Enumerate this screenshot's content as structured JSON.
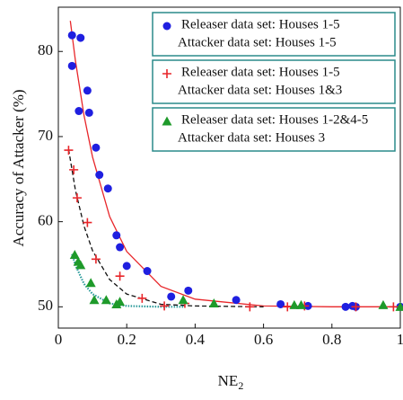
{
  "chart_data": {
    "type": "scatter",
    "x_label": "NE",
    "x_label_subscript": "2",
    "y_label": "Accuracy of Attacker (%)",
    "xlim": [
      0,
      1
    ],
    "ylim": [
      47.5,
      85.2
    ],
    "xticks": [
      0,
      0.2,
      0.4,
      0.6,
      0.8,
      1
    ],
    "yticks": [
      50,
      60,
      70,
      80
    ],
    "grid": false,
    "legend_position": "upper right",
    "series": [
      {
        "name": [
          "Releaser data set: Houses 1-5",
          "Attacker data set: Houses 1-5"
        ],
        "color": "#1f1fe0",
        "marker": "circle",
        "x": [
          0.04,
          0.065,
          0.04,
          0.085,
          0.06,
          0.09,
          0.11,
          0.12,
          0.145,
          0.17,
          0.18,
          0.2,
          0.26,
          0.33,
          0.38,
          0.52,
          0.65,
          0.73,
          0.84,
          0.86,
          0.87,
          1
        ],
        "values": [
          81.9,
          81.6,
          78.3,
          75.4,
          73,
          72.8,
          68.7,
          65.5,
          63.9,
          58.4,
          57,
          54.8,
          54.2,
          51.2,
          51.9,
          50.8,
          50.3,
          50.1,
          50,
          50.1,
          50,
          50
        ]
      },
      {
        "name": [
          "Releaser data set: Houses 1-5",
          "Attacker data set: Houses 1&3"
        ],
        "color": "#e8262a",
        "marker": "plus",
        "x": [
          0.03,
          0.045,
          0.055,
          0.085,
          0.11,
          0.18,
          0.245,
          0.31,
          0.37,
          0.56,
          0.67,
          0.72,
          0.87,
          0.98
        ],
        "values": [
          68.4,
          66.1,
          62.8,
          59.9,
          55.6,
          53.6,
          51,
          50.1,
          50.4,
          50,
          50,
          50.1,
          50,
          50
        ]
      },
      {
        "name": [
          "Releaser data set: Houses 1-2&4-5",
          "Attacker data set: Houses 3"
        ],
        "color": "#1e9a2a",
        "marker": "triangle",
        "x": [
          0.048,
          0.058,
          0.065,
          0.095,
          0.105,
          0.14,
          0.17,
          0.18,
          0.365,
          0.455,
          0.69,
          0.71,
          0.95,
          1
        ],
        "values": [
          56.1,
          55.3,
          54.9,
          52.8,
          50.8,
          50.8,
          50.3,
          50.6,
          50.8,
          50.4,
          50.2,
          50.2,
          50.2,
          50
        ]
      }
    ],
    "fits": [
      {
        "color": "#e8262a",
        "dash": "none",
        "x": [
          0.035,
          0.05,
          0.075,
          0.1,
          0.15,
          0.2,
          0.3,
          0.4,
          0.6,
          0.8,
          1
        ],
        "values": [
          83.6,
          78.9,
          72.5,
          67.6,
          60.6,
          56.5,
          52.4,
          50.9,
          50.1,
          50,
          50
        ]
      },
      {
        "color": "#111111",
        "dash": "5 3",
        "x": [
          0.03,
          0.05,
          0.075,
          0.1,
          0.15,
          0.2,
          0.3,
          0.4,
          0.6
        ],
        "values": [
          68.5,
          63.7,
          59.5,
          56.6,
          53.2,
          51.5,
          50.3,
          50.1,
          50
        ]
      },
      {
        "color": "#2a9a9a",
        "dash": "1.5 1.5",
        "x": [
          0.04,
          0.05,
          0.075,
          0.1,
          0.15,
          0.2,
          0.3,
          0.37
        ],
        "values": [
          56.2,
          54.9,
          52.7,
          51.5,
          50.4,
          50.1,
          50,
          50
        ]
      }
    ]
  }
}
